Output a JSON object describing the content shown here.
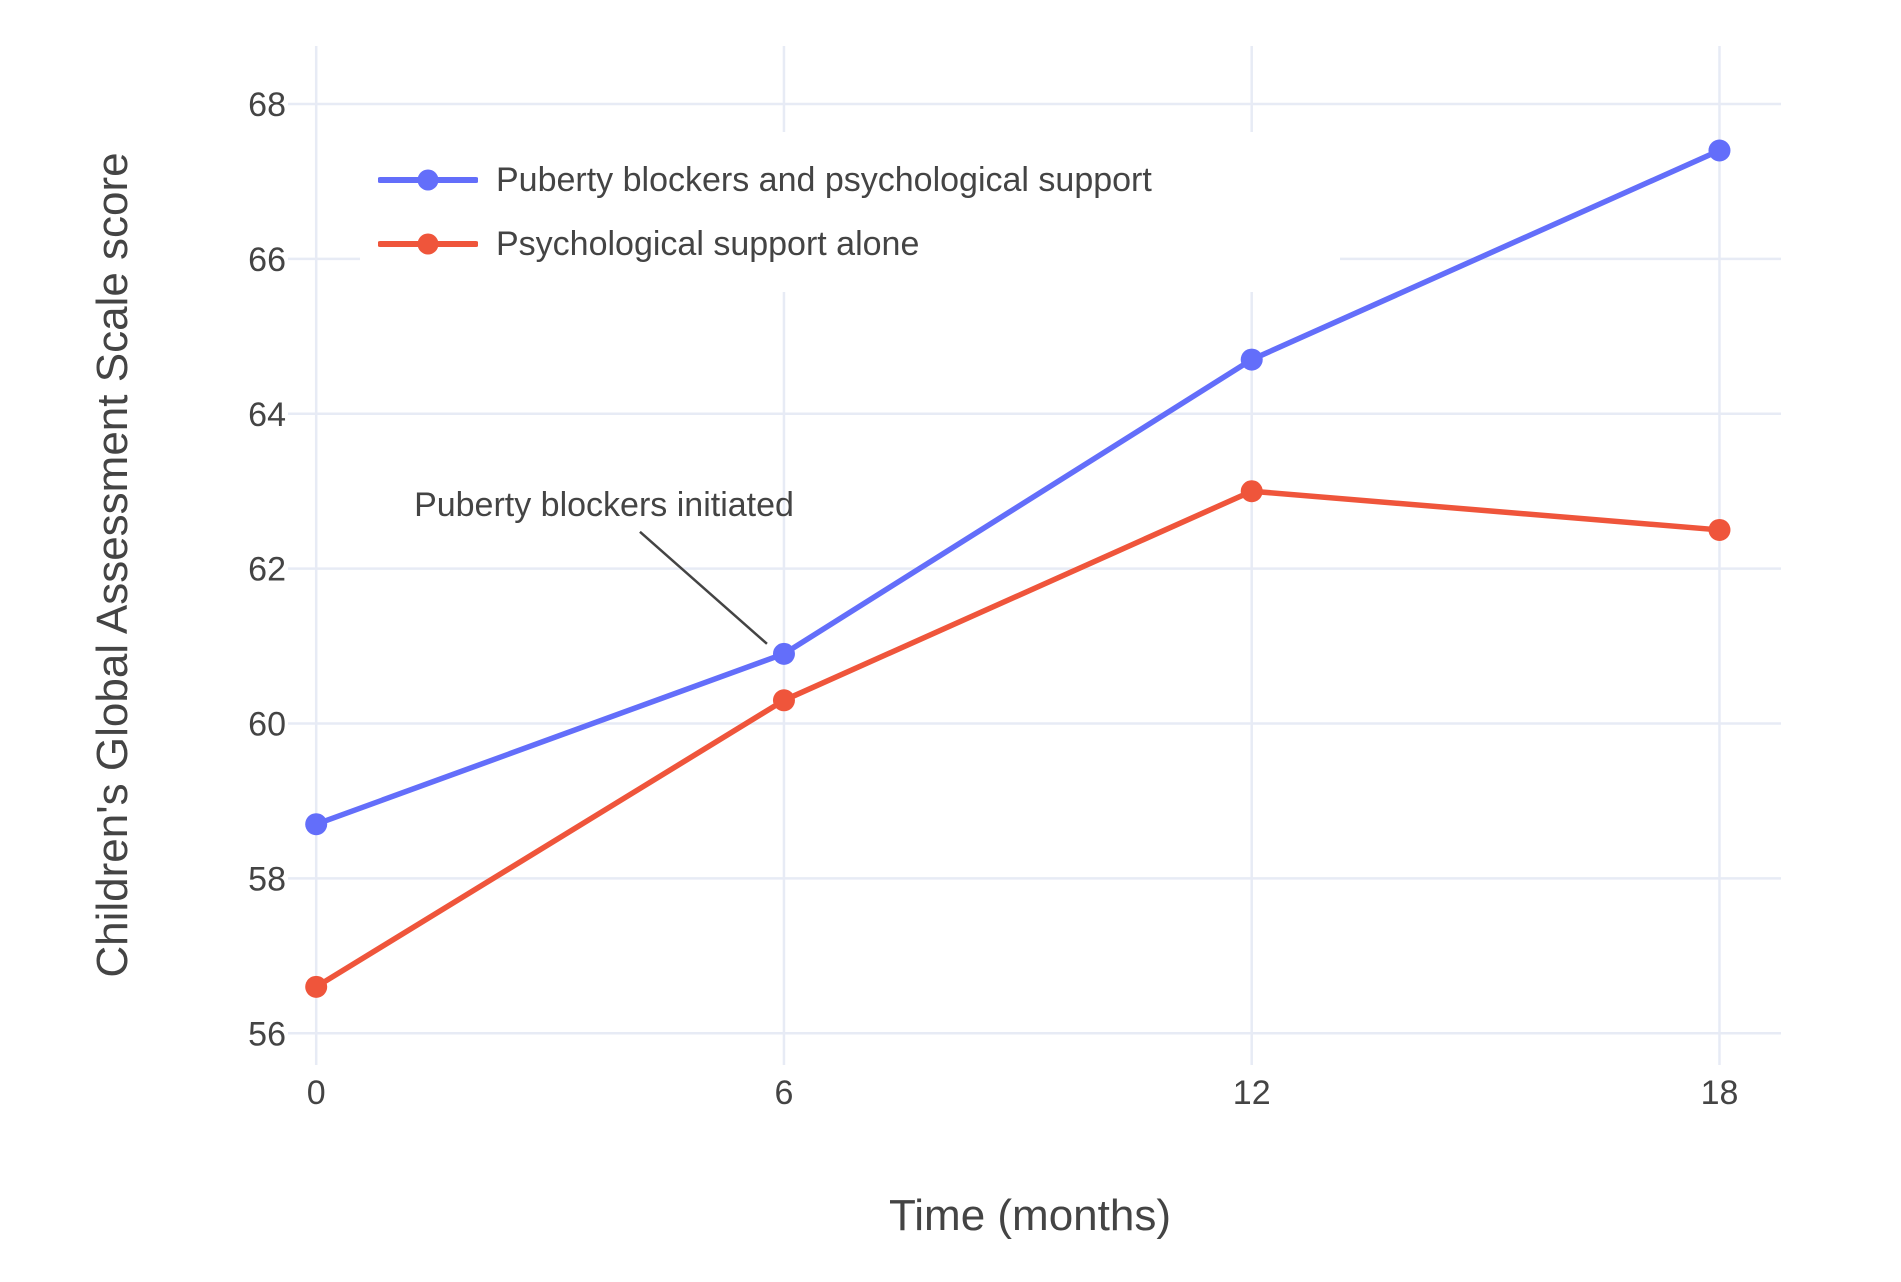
{
  "chart_data": {
    "type": "line",
    "title": "",
    "xlabel": "Time (months)",
    "ylabel": "Children's Global Assessment Scale score",
    "x": [
      0,
      6,
      12,
      18
    ],
    "series": [
      {
        "name": "Puberty blockers and psychological support",
        "color": "#636EFA",
        "values": [
          58.7,
          60.9,
          64.7,
          67.4
        ]
      },
      {
        "name": "Psychological support alone",
        "color": "#EF553B",
        "values": [
          56.6,
          60.3,
          63.0,
          62.5
        ]
      }
    ],
    "xticks": [
      0,
      6,
      12,
      18
    ],
    "yticks": [
      56,
      58,
      60,
      62,
      64,
      66,
      68
    ],
    "xlim": [
      -0.36,
      18.79
    ],
    "ylim": [
      55.6,
      68.75
    ],
    "grid": true,
    "legend_position": "inside-top-left",
    "annotation": {
      "text": "Puberty blockers initiated",
      "x": 6,
      "y": 60.9
    }
  },
  "style": {
    "grid_color": "#E7EBF5",
    "text_color": "#444444",
    "annotation_line_color": "#444444",
    "background": "#FFFFFF"
  }
}
